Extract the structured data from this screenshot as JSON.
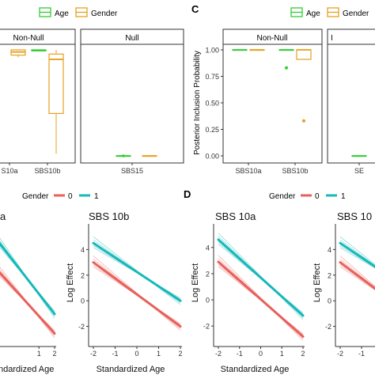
{
  "panel_labels": {
    "c": "C",
    "d": "D"
  },
  "legend_top": {
    "items": [
      "Age",
      "Gender"
    ],
    "colors": [
      "#33cc33",
      "#e6a020"
    ]
  },
  "legend_bottom": {
    "title": "Gender",
    "items": [
      "0",
      "1"
    ],
    "colors": [
      "#e8605a",
      "#17b8b8"
    ]
  },
  "strips": {
    "non_null": "Non-Null",
    "null": "Null",
    "null_partial": "I"
  },
  "chart_data": [
    {
      "type": "box",
      "panel": "B (partially visible)",
      "facets": [
        "Non-Null",
        "Null"
      ],
      "categories": [
        "SBS10a",
        "SBS10b",
        "SBS15"
      ],
      "category_labels": [
        "S10a",
        "SBS10b",
        "SBS15"
      ],
      "series": [
        {
          "name": "Age",
          "color": "#33cc33",
          "boxes": [
            null,
            {
              "q1": 0.99,
              "median": 0.995,
              "q3": 1.0
            },
            {
              "q1": 0.0,
              "median": 0.0,
              "q3": 0.0,
              "point": 0.0
            }
          ]
        },
        {
          "name": "Gender",
          "color": "#e6a020",
          "boxes": [
            {
              "min": 0.93,
              "q1": 0.95,
              "median": 0.98,
              "q3": 1.0,
              "max": 1.0
            },
            {
              "min": 0.02,
              "q1": 0.4,
              "median": 0.91,
              "q3": 0.96,
              "max": 1.0
            },
            {
              "q1": 0.0,
              "median": 0.0,
              "q3": 0.0
            }
          ]
        }
      ],
      "ylim": [
        0,
        1.0
      ]
    },
    {
      "type": "box",
      "panel": "C",
      "facets": [
        "Non-Null",
        "I"
      ],
      "categories": [
        "SBS10a",
        "SBS10b",
        "SBS15"
      ],
      "category_labels": [
        "SBS10a",
        "SBS10b",
        "SE"
      ],
      "ylabel": "Posterior Inclusion Probability",
      "yticks": [
        "0.00",
        "0.25",
        "0.50",
        "0.75",
        "1.00"
      ],
      "ylim": [
        0,
        1.0
      ],
      "series": [
        {
          "name": "Age",
          "color": "#33cc33",
          "boxes": [
            {
              "q1": 1.0,
              "median": 1.0,
              "q3": 1.0
            },
            {
              "q1": 1.0,
              "median": 1.0,
              "q3": 1.0,
              "outliers": [
                0.83
              ]
            },
            {
              "q1": 0.0,
              "median": 0.0,
              "q3": 0.0
            }
          ]
        },
        {
          "name": "Gender",
          "color": "#e6a020",
          "boxes": [
            {
              "q1": 1.0,
              "median": 1.0,
              "q3": 1.0
            },
            {
              "min": 0.91,
              "q1": 0.91,
              "median": 1.0,
              "q3": 1.0,
              "max": 1.0,
              "outliers": [
                0.33
              ]
            },
            null
          ]
        }
      ]
    },
    {
      "type": "line",
      "panel": "lower-left a (partial)",
      "title": "a",
      "xlabel": "ndardized Age",
      "xlim": [
        -2,
        2
      ],
      "xticks": [
        "1",
        "2"
      ],
      "ylim": [
        -3,
        5.5
      ],
      "series": [
        {
          "name": "0",
          "color": "#e8605a",
          "x": [
            -2,
            2
          ],
          "y": [
            2.6,
            -2.4
          ]
        },
        {
          "name": "1",
          "color": "#17b8b8",
          "x": [
            -2,
            2
          ],
          "y": [
            4.8,
            -1.0
          ]
        }
      ]
    },
    {
      "type": "line",
      "panel": "SBS 10b",
      "title": "SBS 10b",
      "xlabel": "Standardized Age",
      "ylabel": "Log Effect",
      "xticks": [
        "-2",
        "-1",
        "0",
        "1",
        "2"
      ],
      "yticks": [
        "-2",
        "0",
        "2",
        "4"
      ],
      "xlim": [
        -2,
        2
      ],
      "ylim": [
        -3.2,
        6.0
      ],
      "series": [
        {
          "name": "0",
          "color": "#e8605a",
          "x": [
            -2,
            2
          ],
          "y": [
            3.0,
            -2.0
          ]
        },
        {
          "name": "1",
          "color": "#17b8b8",
          "x": [
            -2,
            2
          ],
          "y": [
            4.5,
            0.0
          ]
        }
      ]
    },
    {
      "type": "line",
      "panel": "D: SBS 10a",
      "title": "SBS 10a",
      "xlabel": "Standardized Age",
      "ylabel": "Log Effect",
      "xticks": [
        "-2",
        "-1",
        "0",
        "1",
        "2"
      ],
      "yticks": [
        "-2",
        "0",
        "2",
        "4"
      ],
      "xlim": [
        -2,
        2
      ],
      "ylim": [
        -3.2,
        5.8
      ],
      "series": [
        {
          "name": "0",
          "color": "#e8605a",
          "x": [
            -2,
            2
          ],
          "y": [
            2.9,
            -2.8
          ]
        },
        {
          "name": "1",
          "color": "#17b8b8",
          "x": [
            -2,
            2
          ],
          "y": [
            4.6,
            -1.2
          ]
        }
      ]
    },
    {
      "type": "line",
      "panel": "D: SBS 10b (partial)",
      "title": "SBS 10",
      "xlabel": "",
      "ylabel": "Log Effect",
      "xticks": [
        "-2",
        "-1"
      ],
      "yticks": [
        "-2",
        "0",
        "2",
        "4"
      ],
      "xlim": [
        -2,
        2
      ],
      "ylim": [
        -3.2,
        6.0
      ],
      "series": [
        {
          "name": "0",
          "color": "#e8605a",
          "x": [
            -2,
            2
          ],
          "y": [
            3.0,
            -2.0
          ]
        },
        {
          "name": "1",
          "color": "#17b8b8",
          "x": [
            -2,
            2
          ],
          "y": [
            4.5,
            0.0
          ]
        }
      ]
    }
  ]
}
